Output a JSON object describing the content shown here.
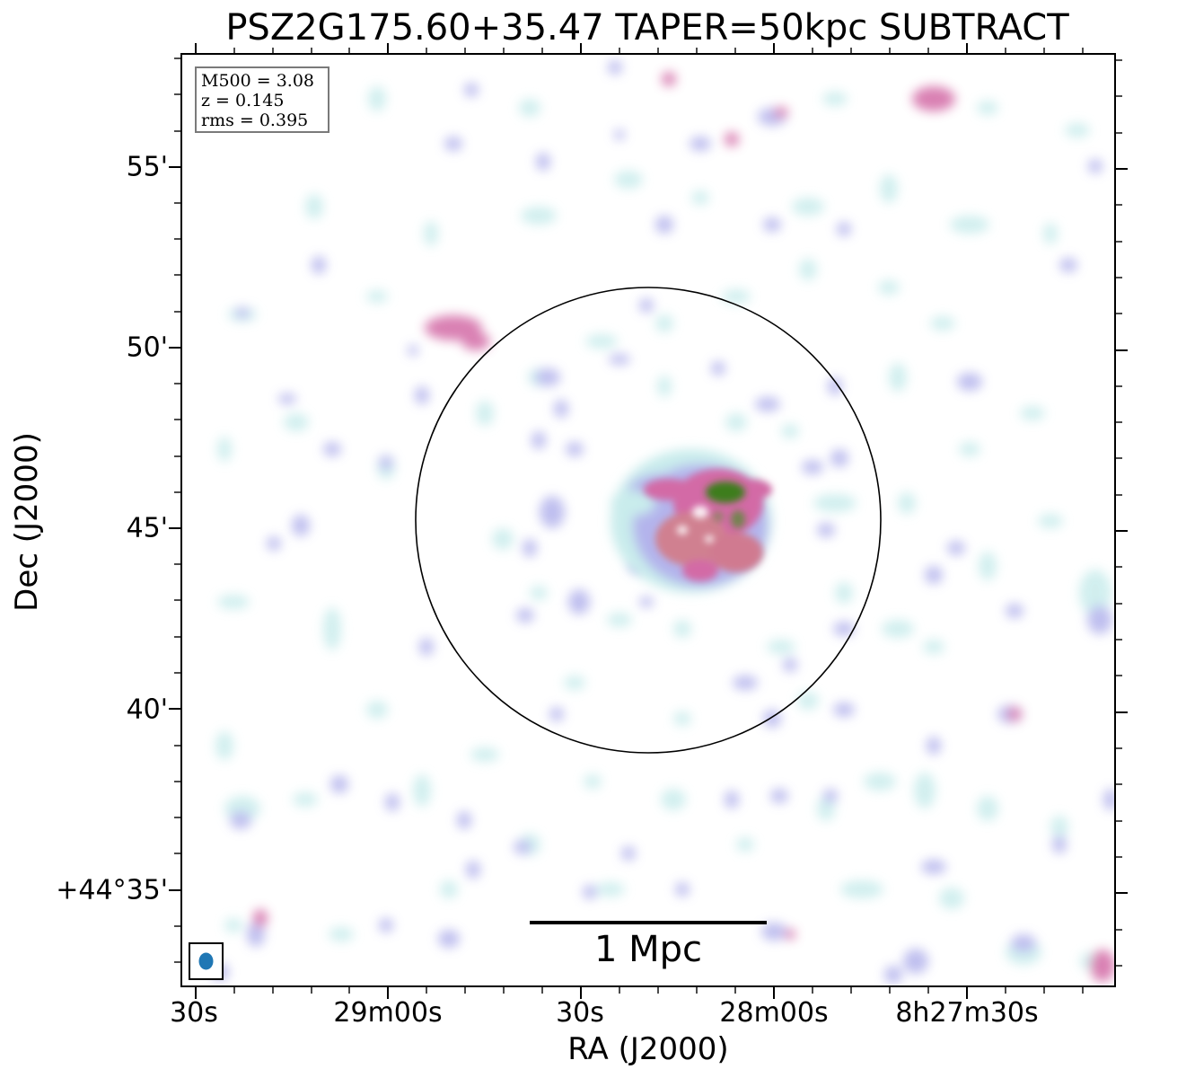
{
  "title": "PSZ2G175.60+35.47 TAPER=50kpc SUBTRACT",
  "axes": {
    "xlabel": "RA (J2000)",
    "ylabel": "Dec (J2000)",
    "x_ticks": [
      "30s",
      "29m00s",
      "30s",
      "28m00s",
      "8h27m30s"
    ],
    "y_ticks": [
      "55'",
      "50'",
      "45'",
      "40'",
      "+44°35'"
    ]
  },
  "info": {
    "mass": "M500 = 3.08",
    "redshift": "z = 0.145",
    "rms": "rms = 0.395"
  },
  "scale_bar": {
    "label": "1 Mpc"
  },
  "colors": {
    "low_emission": "#c9ecec",
    "mid_emission": "#b4b4ec",
    "high_emission": "#d36aa6",
    "peak_emission": "#3e7d1d",
    "beam": "#1f77b4"
  }
}
